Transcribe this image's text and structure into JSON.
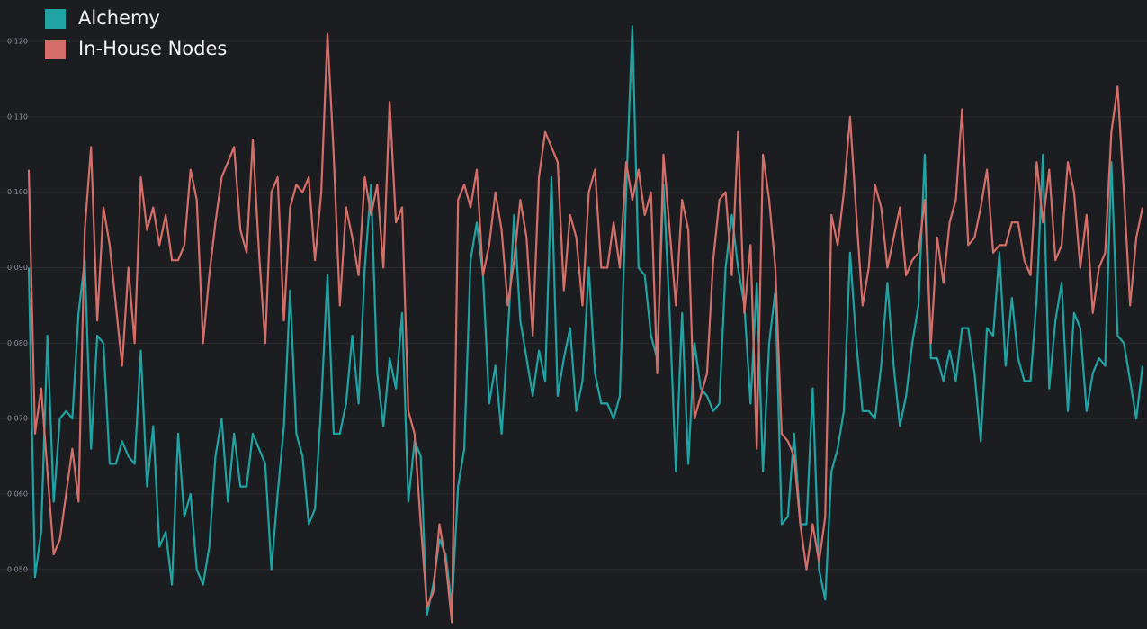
{
  "chart_data": {
    "type": "line",
    "ylim": [
      0.0421,
      0.1255
    ],
    "yticks": [
      {
        "value": 0.05,
        "label": "0.050"
      },
      {
        "value": 0.06,
        "label": "0.060"
      },
      {
        "value": 0.07,
        "label": "0.070"
      },
      {
        "value": 0.08,
        "label": "0.080"
      },
      {
        "value": 0.09,
        "label": "0.090"
      },
      {
        "value": 0.1,
        "label": "0.100"
      },
      {
        "value": 0.11,
        "label": "0.110"
      },
      {
        "value": 0.12,
        "label": "0.120"
      }
    ],
    "grid": true,
    "legend": "top-left",
    "series": [
      {
        "name": "Alchemy",
        "color": "#1fa3a3",
        "values": [
          0.09,
          0.049,
          0.055,
          0.081,
          0.059,
          0.07,
          0.071,
          0.07,
          0.084,
          0.091,
          0.066,
          0.081,
          0.08,
          0.064,
          0.064,
          0.067,
          0.065,
          0.064,
          0.079,
          0.061,
          0.069,
          0.053,
          0.055,
          0.048,
          0.068,
          0.057,
          0.06,
          0.05,
          0.048,
          0.053,
          0.065,
          0.07,
          0.059,
          0.068,
          0.061,
          0.061,
          0.068,
          0.066,
          0.064,
          0.05,
          0.06,
          0.069,
          0.087,
          0.068,
          0.065,
          0.056,
          0.058,
          0.072,
          0.089,
          0.068,
          0.068,
          0.072,
          0.081,
          0.072,
          0.09,
          0.101,
          0.076,
          0.069,
          0.078,
          0.074,
          0.084,
          0.059,
          0.067,
          0.065,
          0.044,
          0.048,
          0.054,
          0.052,
          0.045,
          0.061,
          0.066,
          0.091,
          0.096,
          0.089,
          0.072,
          0.077,
          0.068,
          0.081,
          0.097,
          0.083,
          0.078,
          0.073,
          0.079,
          0.075,
          0.102,
          0.073,
          0.078,
          0.082,
          0.071,
          0.075,
          0.09,
          0.076,
          0.072,
          0.072,
          0.07,
          0.073,
          0.1,
          0.122,
          0.09,
          0.089,
          0.081,
          0.078,
          0.101,
          0.084,
          0.063,
          0.084,
          0.064,
          0.08,
          0.074,
          0.073,
          0.071,
          0.072,
          0.09,
          0.097,
          0.09,
          0.085,
          0.072,
          0.088,
          0.063,
          0.08,
          0.087,
          0.056,
          0.057,
          0.068,
          0.056,
          0.056,
          0.074,
          0.05,
          0.046,
          0.063,
          0.066,
          0.071,
          0.092,
          0.08,
          0.071,
          0.071,
          0.07,
          0.077,
          0.088,
          0.077,
          0.069,
          0.073,
          0.08,
          0.085,
          0.105,
          0.078,
          0.078,
          0.075,
          0.079,
          0.075,
          0.082,
          0.082,
          0.076,
          0.067,
          0.082,
          0.081,
          0.092,
          0.077,
          0.086,
          0.078,
          0.075,
          0.075,
          0.086,
          0.105,
          0.074,
          0.083,
          0.088,
          0.071,
          0.084,
          0.082,
          0.071,
          0.076,
          0.078,
          0.077,
          0.104,
          0.081,
          0.08,
          0.075,
          0.07,
          0.077
        ]
      },
      {
        "name": "In-House Nodes",
        "color": "#d46e68",
        "values": [
          0.103,
          0.068,
          0.074,
          0.063,
          0.052,
          0.054,
          0.06,
          0.066,
          0.059,
          0.095,
          0.106,
          0.083,
          0.098,
          0.093,
          0.085,
          0.077,
          0.09,
          0.08,
          0.102,
          0.095,
          0.098,
          0.093,
          0.097,
          0.091,
          0.091,
          0.093,
          0.103,
          0.099,
          0.08,
          0.089,
          0.096,
          0.102,
          0.104,
          0.106,
          0.095,
          0.092,
          0.107,
          0.092,
          0.08,
          0.1,
          0.102,
          0.083,
          0.098,
          0.101,
          0.1,
          0.102,
          0.091,
          0.1,
          0.121,
          0.105,
          0.085,
          0.098,
          0.094,
          0.089,
          0.102,
          0.097,
          0.101,
          0.09,
          0.112,
          0.096,
          0.098,
          0.071,
          0.068,
          0.056,
          0.045,
          0.047,
          0.056,
          0.051,
          0.043,
          0.099,
          0.101,
          0.098,
          0.103,
          0.089,
          0.093,
          0.1,
          0.095,
          0.085,
          0.091,
          0.099,
          0.094,
          0.081,
          0.102,
          0.108,
          0.106,
          0.104,
          0.087,
          0.097,
          0.094,
          0.085,
          0.1,
          0.103,
          0.09,
          0.09,
          0.096,
          0.09,
          0.104,
          0.099,
          0.103,
          0.097,
          0.1,
          0.076,
          0.105,
          0.095,
          0.085,
          0.099,
          0.095,
          0.07,
          0.073,
          0.076,
          0.091,
          0.099,
          0.1,
          0.089,
          0.108,
          0.084,
          0.093,
          0.066,
          0.105,
          0.099,
          0.09,
          0.068,
          0.067,
          0.065,
          0.056,
          0.05,
          0.056,
          0.051,
          0.057,
          0.097,
          0.093,
          0.1,
          0.11,
          0.097,
          0.085,
          0.09,
          0.101,
          0.098,
          0.09,
          0.094,
          0.098,
          0.089,
          0.091,
          0.092,
          0.099,
          0.08,
          0.094,
          0.088,
          0.096,
          0.099,
          0.111,
          0.093,
          0.094,
          0.098,
          0.103,
          0.092,
          0.093,
          0.093,
          0.096,
          0.096,
          0.091,
          0.089,
          0.104,
          0.096,
          0.103,
          0.091,
          0.093,
          0.104,
          0.1,
          0.09,
          0.097,
          0.084,
          0.09,
          0.092,
          0.108,
          0.114,
          0.1,
          0.085,
          0.094,
          0.098
        ]
      }
    ]
  }
}
